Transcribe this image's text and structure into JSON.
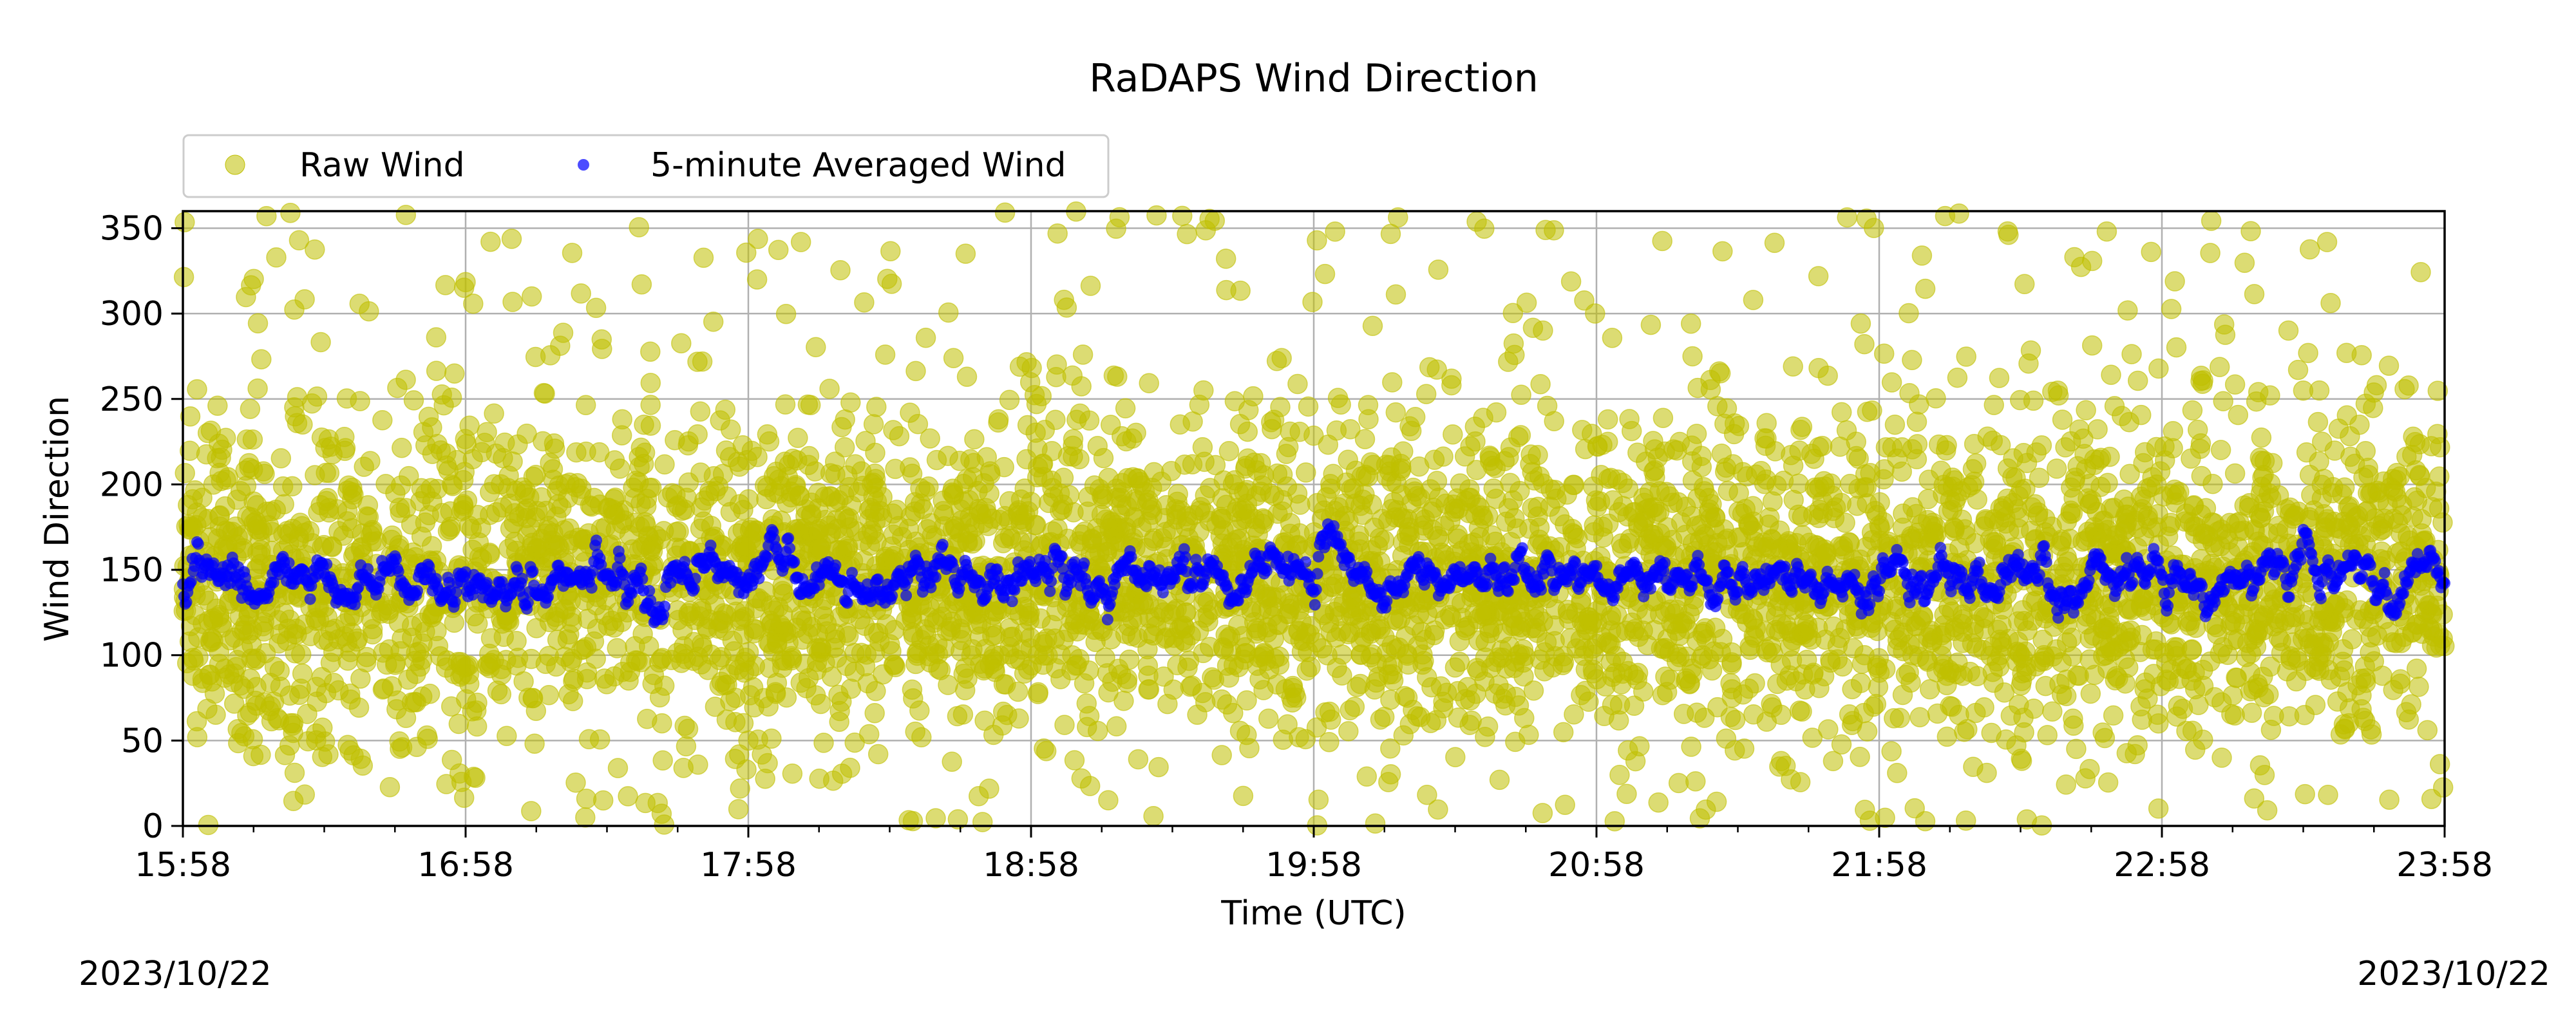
{
  "chart_data": {
    "type": "scatter",
    "title": "RaDAPS Wind Direction",
    "xlabel": "Time (UTC)",
    "ylabel": "Wind Direction",
    "xlim": [
      "15:58",
      "23:58"
    ],
    "ylim": [
      0,
      360
    ],
    "x_ticks": [
      "15:58",
      "16:58",
      "17:58",
      "18:58",
      "19:58",
      "20:58",
      "21:58",
      "22:58",
      "23:58"
    ],
    "y_ticks": [
      0,
      50,
      100,
      150,
      200,
      250,
      300,
      350
    ],
    "date_left": "2023/10/22",
    "date_right": "2023/10/22",
    "grid": true,
    "legend": {
      "placement": "above-top-left",
      "columns": 2
    },
    "series": [
      {
        "name": "Raw Wind",
        "color": "#bfbf00",
        "marker": "circle",
        "alpha": 0.55,
        "distribution": {
          "center": 145,
          "spread_sd": 45,
          "dense_band": [
            60,
            240
          ],
          "outlier_range": [
            0,
            360
          ]
        }
      },
      {
        "name": "5-minute Averaged Wind",
        "color": "#0000ff",
        "marker": "point",
        "alpha": 0.7,
        "distribution": {
          "center": 145,
          "typical_range": [
            120,
            170
          ]
        },
        "notable_peaks": [
          {
            "x": "20:01",
            "y": 182
          },
          {
            "x": "23:28",
            "y": 173
          },
          {
            "x": "17:38",
            "y": 120
          }
        ]
      }
    ]
  }
}
